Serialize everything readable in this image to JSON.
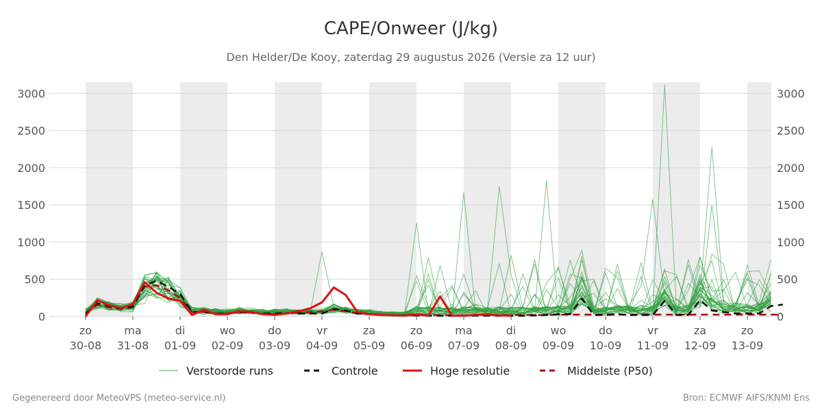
{
  "chart_data": {
    "type": "line",
    "title": "CAPE/Onweer (J/kg)",
    "subtitle": "Den Helder/De Kooy, zaterdag 29 augustus 2026 (Versie za 12 uur)",
    "xlabel": "",
    "ylabel": "",
    "ylim": [
      0,
      3150
    ],
    "yticks": [
      0,
      500,
      1000,
      1500,
      2000,
      2500,
      3000
    ],
    "grid": true,
    "weekend_shading": true,
    "x_days": [
      {
        "day": "zo",
        "date": "30-08"
      },
      {
        "day": "ma",
        "date": "31-08"
      },
      {
        "day": "di",
        "date": "01-09"
      },
      {
        "day": "wo",
        "date": "02-09"
      },
      {
        "day": "do",
        "date": "03-09"
      },
      {
        "day": "vr",
        "date": "04-09"
      },
      {
        "day": "za",
        "date": "05-09"
      },
      {
        "day": "zo",
        "date": "06-09"
      },
      {
        "day": "ma",
        "date": "07-09"
      },
      {
        "day": "di",
        "date": "08-09"
      },
      {
        "day": "wo",
        "date": "09-09"
      },
      {
        "day": "do",
        "date": "10-09"
      },
      {
        "day": "vr",
        "date": "11-09"
      },
      {
        "day": "za",
        "date": "12-09"
      },
      {
        "day": "zo",
        "date": "13-09"
      }
    ],
    "legend_position": "bottom",
    "series": [
      {
        "name": "Hoge resolutie",
        "color": "#dd1111",
        "style": "solid",
        "points": [
          [
            0,
            0
          ],
          [
            0.25,
            220
          ],
          [
            0.5,
            150
          ],
          [
            0.75,
            110
          ],
          [
            1,
            170
          ],
          [
            1.25,
            460
          ],
          [
            1.5,
            320
          ],
          [
            1.75,
            240
          ],
          [
            2,
            210
          ],
          [
            2.25,
            20
          ],
          [
            2.5,
            90
          ],
          [
            2.75,
            30
          ],
          [
            3,
            30
          ],
          [
            3.25,
            70
          ],
          [
            3.5,
            60
          ],
          [
            3.75,
            30
          ],
          [
            4,
            20
          ],
          [
            4.25,
            40
          ],
          [
            4.5,
            70
          ],
          [
            4.75,
            110
          ],
          [
            5,
            190
          ],
          [
            5.25,
            390
          ],
          [
            5.5,
            290
          ],
          [
            5.75,
            60
          ],
          [
            6,
            30
          ],
          [
            6.25,
            20
          ],
          [
            6.5,
            15
          ],
          [
            6.75,
            10
          ],
          [
            7,
            30
          ],
          [
            7.25,
            10
          ],
          [
            7.5,
            270
          ],
          [
            7.75,
            10
          ],
          [
            8,
            10
          ],
          [
            8.25,
            20
          ],
          [
            8.5,
            25
          ],
          [
            8.75,
            15
          ],
          [
            9,
            10
          ]
        ]
      },
      {
        "name": "Controle",
        "color": "#111111",
        "style": "dash",
        "points": [
          [
            0,
            40
          ],
          [
            0.25,
            180
          ],
          [
            0.5,
            140
          ],
          [
            0.75,
            100
          ],
          [
            1,
            130
          ],
          [
            1.25,
            420
          ],
          [
            1.5,
            480
          ],
          [
            1.75,
            400
          ],
          [
            2,
            300
          ],
          [
            2.25,
            60
          ],
          [
            2.5,
            60
          ],
          [
            2.75,
            40
          ],
          [
            3,
            40
          ],
          [
            3.25,
            60
          ],
          [
            3.5,
            50
          ],
          [
            3.75,
            40
          ],
          [
            4,
            40
          ],
          [
            4.25,
            50
          ],
          [
            4.5,
            40
          ],
          [
            4.75,
            40
          ],
          [
            5,
            40
          ],
          [
            5.25,
            100
          ],
          [
            5.5,
            80
          ],
          [
            5.75,
            40
          ],
          [
            6,
            30
          ],
          [
            6.25,
            20
          ],
          [
            6.5,
            15
          ],
          [
            6.75,
            15
          ],
          [
            7,
            15
          ],
          [
            7.25,
            10
          ],
          [
            7.5,
            10
          ],
          [
            7.75,
            10
          ],
          [
            8,
            10
          ],
          [
            8.25,
            10
          ],
          [
            8.5,
            10
          ],
          [
            8.75,
            10
          ],
          [
            9,
            10
          ],
          [
            9.25,
            10
          ],
          [
            9.5,
            15
          ],
          [
            9.75,
            20
          ],
          [
            10,
            30
          ],
          [
            10.25,
            30
          ],
          [
            10.5,
            240
          ],
          [
            10.75,
            20
          ],
          [
            11,
            20
          ],
          [
            11.25,
            30
          ],
          [
            11.5,
            20
          ],
          [
            11.75,
            20
          ],
          [
            12,
            20
          ],
          [
            12.25,
            210
          ],
          [
            12.5,
            20
          ],
          [
            12.75,
            20
          ],
          [
            13,
            220
          ],
          [
            13.25,
            80
          ],
          [
            13.5,
            60
          ],
          [
            13.75,
            40
          ],
          [
            14,
            40
          ],
          [
            14.25,
            40
          ],
          [
            14.5,
            140
          ],
          [
            14.75,
            160
          ]
        ]
      },
      {
        "name": "Middelste (P50)",
        "color": "#aa1111",
        "style": "dash",
        "points": [
          [
            0,
            30
          ],
          [
            0.25,
            160
          ],
          [
            0.5,
            120
          ],
          [
            0.75,
            100
          ],
          [
            1,
            160
          ],
          [
            1.25,
            400
          ],
          [
            1.5,
            420
          ],
          [
            1.75,
            350
          ],
          [
            2,
            250
          ],
          [
            2.25,
            60
          ],
          [
            2.5,
            60
          ],
          [
            2.75,
            40
          ],
          [
            3,
            40
          ],
          [
            3.25,
            60
          ],
          [
            3.5,
            50
          ],
          [
            3.75,
            30
          ],
          [
            4,
            30
          ],
          [
            4.25,
            40
          ],
          [
            4.5,
            50
          ],
          [
            4.75,
            60
          ],
          [
            5,
            70
          ],
          [
            5.25,
            90
          ],
          [
            5.5,
            70
          ],
          [
            5.75,
            40
          ],
          [
            6,
            30
          ],
          [
            6.25,
            20
          ],
          [
            6.5,
            15
          ],
          [
            6.75,
            15
          ],
          [
            7,
            15
          ],
          [
            7.25,
            15
          ],
          [
            7.5,
            20
          ],
          [
            7.75,
            15
          ],
          [
            8,
            15
          ],
          [
            8.25,
            20
          ],
          [
            8.5,
            20
          ],
          [
            8.75,
            20
          ],
          [
            9,
            20
          ],
          [
            9.25,
            20
          ],
          [
            9.5,
            20
          ],
          [
            9.75,
            20
          ],
          [
            10,
            25
          ],
          [
            10.25,
            25
          ],
          [
            10.5,
            25
          ],
          [
            10.75,
            25
          ],
          [
            11,
            25
          ],
          [
            11.25,
            25
          ],
          [
            11.5,
            25
          ],
          [
            11.75,
            25
          ],
          [
            12,
            25
          ],
          [
            12.25,
            25
          ],
          [
            12.5,
            25
          ],
          [
            12.75,
            25
          ],
          [
            13,
            25
          ],
          [
            13.25,
            25
          ],
          [
            13.5,
            25
          ],
          [
            13.75,
            25
          ],
          [
            14,
            25
          ],
          [
            14.25,
            25
          ],
          [
            14.5,
            25
          ],
          [
            14.75,
            25
          ]
        ]
      }
    ],
    "ensemble": {
      "name": "Verstoorde runs",
      "color": "#2e9e3e",
      "member_count": 30,
      "highlight_peaks": [
        {
          "x": 5.0,
          "y": 870
        },
        {
          "x": 7.0,
          "y": 1260
        },
        {
          "x": 8.0,
          "y": 1670
        },
        {
          "x": 8.75,
          "y": 1750
        },
        {
          "x": 9.75,
          "y": 1830
        },
        {
          "x": 12.0,
          "y": 1580
        },
        {
          "x": 12.2,
          "y": 3120
        },
        {
          "x": 13.2,
          "y": 2280
        },
        {
          "x": 13.3,
          "y": 1500
        }
      ]
    },
    "legend": [
      {
        "label": "Verstoorde runs",
        "color": "#4caf50",
        "style": "thin"
      },
      {
        "label": "Controle",
        "color": "#111111",
        "style": "dash"
      },
      {
        "label": "Hoge resolutie",
        "color": "#dd1111",
        "style": "solid"
      },
      {
        "label": "Middelste (P50)",
        "color": "#aa1111",
        "style": "dash"
      }
    ]
  },
  "footer": {
    "left": "Gegenereerd door MeteoVPS (meteo-service.nl)",
    "right": "Bron: ECMWF AIFS/KNMI Ens"
  }
}
